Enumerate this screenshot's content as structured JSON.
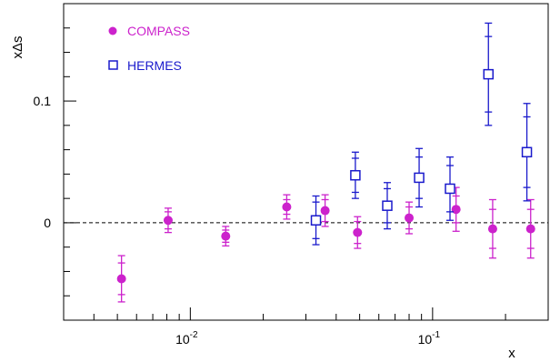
{
  "chart_data": {
    "type": "scatter",
    "title": "",
    "xlabel": "x",
    "ylabel": "xΔs",
    "xscale": "log",
    "xlim": [
      0.003,
      0.3
    ],
    "ylim": [
      -0.08,
      0.18
    ],
    "x_ticks": [
      {
        "value": 0.01,
        "base": "10",
        "exp": "-2"
      },
      {
        "value": 0.1,
        "base": "10",
        "exp": "-1"
      }
    ],
    "y_ticks": [
      {
        "value": 0,
        "label": "0"
      },
      {
        "value": 0.1,
        "label": "0.1"
      }
    ],
    "reference_line": {
      "y": 0,
      "style": "dashed"
    },
    "grid": false,
    "legend_position": "top-left",
    "series": [
      {
        "name": "COMPASS",
        "marker": "filled-circle",
        "color": "#cc22cc",
        "points": [
          {
            "x": 0.0052,
            "y": -0.046,
            "err_stat": 0.013,
            "err_sys": 0.019
          },
          {
            "x": 0.0081,
            "y": 0.002,
            "err_stat": 0.007,
            "err_sys": 0.01
          },
          {
            "x": 0.014,
            "y": -0.011,
            "err_stat": 0.005,
            "err_sys": 0.008
          },
          {
            "x": 0.025,
            "y": 0.013,
            "err_stat": 0.006,
            "err_sys": 0.01
          },
          {
            "x": 0.036,
            "y": 0.01,
            "err_stat": 0.009,
            "err_sys": 0.013
          },
          {
            "x": 0.049,
            "y": -0.008,
            "err_stat": 0.009,
            "err_sys": 0.013
          },
          {
            "x": 0.08,
            "y": 0.004,
            "err_stat": 0.009,
            "err_sys": 0.013
          },
          {
            "x": 0.125,
            "y": 0.011,
            "err_stat": 0.011,
            "err_sys": 0.018
          },
          {
            "x": 0.177,
            "y": -0.005,
            "err_stat": 0.016,
            "err_sys": 0.024
          },
          {
            "x": 0.254,
            "y": -0.005,
            "err_stat": 0.016,
            "err_sys": 0.024
          }
        ]
      },
      {
        "name": "HERMES",
        "marker": "open-square",
        "color": "#1a1acc",
        "points": [
          {
            "x": 0.033,
            "y": 0.002,
            "err_stat": 0.015,
            "err_sys": 0.02
          },
          {
            "x": 0.048,
            "y": 0.039,
            "err_stat": 0.014,
            "err_sys": 0.019
          },
          {
            "x": 0.065,
            "y": 0.014,
            "err_stat": 0.014,
            "err_sys": 0.019
          },
          {
            "x": 0.088,
            "y": 0.037,
            "err_stat": 0.017,
            "err_sys": 0.024
          },
          {
            "x": 0.118,
            "y": 0.028,
            "err_stat": 0.019,
            "err_sys": 0.026
          },
          {
            "x": 0.17,
            "y": 0.122,
            "err_stat": 0.031,
            "err_sys": 0.042
          },
          {
            "x": 0.245,
            "y": 0.058,
            "err_stat": 0.029,
            "err_sys": 0.04
          }
        ]
      }
    ]
  }
}
